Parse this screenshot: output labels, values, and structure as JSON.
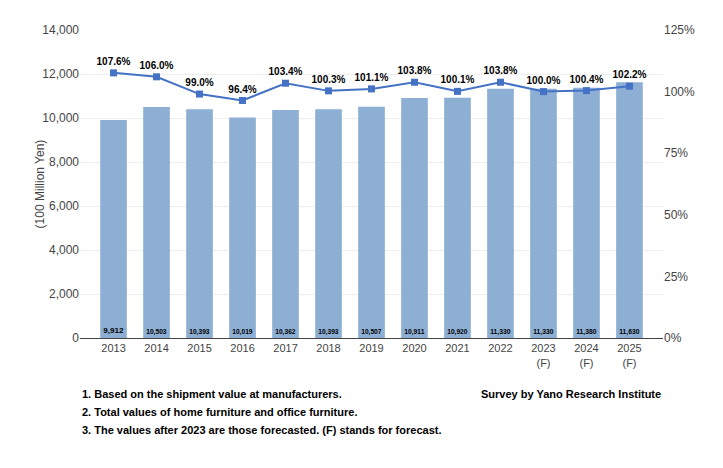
{
  "chart_data": {
    "type": "bar",
    "categories": [
      "2013",
      "2014",
      "2015",
      "2016",
      "2017",
      "2018",
      "2019",
      "2020",
      "2021",
      "2022",
      "2023\n(F)",
      "2024\n(F)",
      "2025\n(F)"
    ],
    "series": [
      {
        "type": "bar",
        "color": "#8dafd4",
        "values": [
          9912,
          10503,
          10393,
          10019,
          10362,
          10393,
          10507,
          10911,
          10920,
          11330,
          11330,
          11380,
          11630
        ],
        "value_labels": [
          "9,912",
          "10,503",
          "10,393",
          "10,019",
          "10,362",
          "10,393",
          "10,507",
          "10,911",
          "10,920",
          "11,330",
          "11,330",
          "11,380",
          "11,630"
        ]
      },
      {
        "type": "line",
        "axis": "y2",
        "color": "#4472c4",
        "marker": "square",
        "values": [
          107.6,
          106.0,
          99.0,
          96.4,
          103.4,
          100.3,
          101.1,
          103.8,
          100.1,
          103.8,
          100.0,
          100.4,
          102.2
        ],
        "value_labels": [
          "107.6%",
          "106.0%",
          "99.0%",
          "96.4%",
          "103.4%",
          "100.3%",
          "101.1%",
          "103.8%",
          "100.1%",
          "103.8%",
          "100.0%",
          "100.4%",
          "102.2%"
        ]
      }
    ],
    "ylabel": "(100 Million Yen)",
    "ylim": [
      0,
      14000
    ],
    "yticks": [
      0,
      {
        "value": 2000,
        "label": "2,000"
      },
      {
        "value": 4000,
        "label": "4,000"
      },
      {
        "value": 6000,
        "label": "6,000"
      },
      {
        "value": 8000,
        "label": "8,000"
      },
      {
        "value": 10000,
        "label": "10,000"
      },
      {
        "value": 12000,
        "label": "12,000"
      },
      {
        "value": 14000,
        "label": "14,000"
      }
    ],
    "y2lim": [
      0,
      125
    ],
    "y2ticks": [
      {
        "value": 0,
        "label": "0%"
      },
      {
        "value": 25,
        "label": "25%"
      },
      {
        "value": 50,
        "label": "50%"
      },
      {
        "value": 75,
        "label": "75%"
      },
      {
        "value": 100,
        "label": "100%"
      },
      {
        "value": 125,
        "label": "125%"
      }
    ],
    "grid": true,
    "data_labels": true,
    "annotations": [
      "1. Based on the shipment value at manufacturers.",
      "2. Total values of home furniture and office furniture.",
      "3. The values after 2023 are those forecasted. (F) stands for forecast.",
      "Survey by Yano Research Institute"
    ]
  }
}
